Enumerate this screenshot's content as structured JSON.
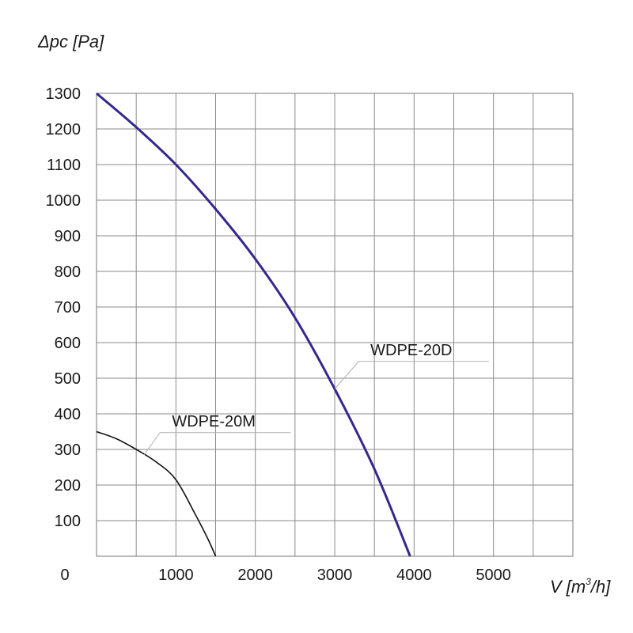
{
  "chart_data": {
    "type": "line",
    "ylabel": "Δpc [Pa]",
    "xlabel_prefix": "V [m",
    "xlabel_sup": "3",
    "xlabel_suffix": "/h]",
    "xlim": [
      0,
      6000
    ],
    "ylim": [
      0,
      1300
    ],
    "x_ticks": [
      1000,
      2000,
      3000,
      4000,
      5000
    ],
    "y_ticks": [
      100,
      200,
      300,
      400,
      500,
      600,
      700,
      800,
      900,
      1000,
      1100,
      1200,
      1300
    ],
    "origin_label": "0",
    "x_grid_step": 500,
    "y_grid_step": 100,
    "grid": true,
    "series": [
      {
        "name": "WDPE-20D",
        "color": "#33298c",
        "x": [
          0,
          500,
          1000,
          1500,
          2000,
          2500,
          3000,
          3500,
          3950
        ],
        "y": [
          1300,
          1205,
          1100,
          975,
          835,
          670,
          470,
          245,
          0
        ],
        "label_anchor": {
          "x": 3000,
          "y": 470
        },
        "label_pos": {
          "x": 3450,
          "y": 565
        }
      },
      {
        "name": "WDPE-20M",
        "color": "#111111",
        "x": [
          0,
          250,
          500,
          750,
          1000,
          1250,
          1400,
          1500
        ],
        "y": [
          350,
          330,
          300,
          265,
          215,
          115,
          50,
          0
        ],
        "label_anchor": {
          "x": 600,
          "y": 285
        },
        "label_pos": {
          "x": 950,
          "y": 365
        }
      }
    ]
  }
}
